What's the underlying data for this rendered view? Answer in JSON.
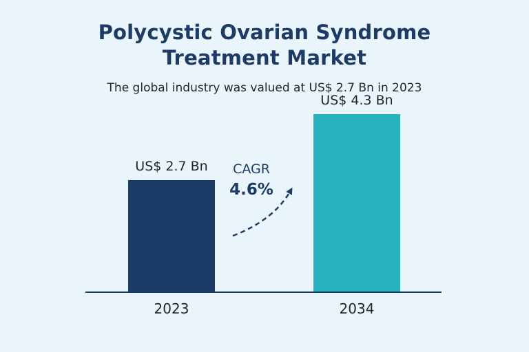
{
  "title_line1": "Polycystic Ovarian Syndrome",
  "title_line2": "Treatment Market",
  "subtitle": "The global industry was valued at US$ 2.7 Bn in 2023",
  "chart_data": {
    "type": "bar",
    "title": "Polycystic Ovarian Syndrome Treatment Market",
    "subtitle": "The global industry was valued at US$ 2.7 Bn in 2023",
    "categories": [
      "2023",
      "2034"
    ],
    "values": [
      2.7,
      4.3
    ],
    "value_labels": [
      "US$ 2.7 Bn",
      "US$ 4.3 Bn"
    ],
    "unit": "US$ Bn",
    "ylim": [
      0,
      5
    ],
    "grid": false,
    "bar_colors": [
      "#1c3b66",
      "#26b3bd"
    ],
    "annotation": {
      "label": "CAGR",
      "value": "4.6%"
    }
  },
  "colors": {
    "background": "#eaf5fb",
    "title": "#1c3b66",
    "axis": "#1c3b66"
  }
}
